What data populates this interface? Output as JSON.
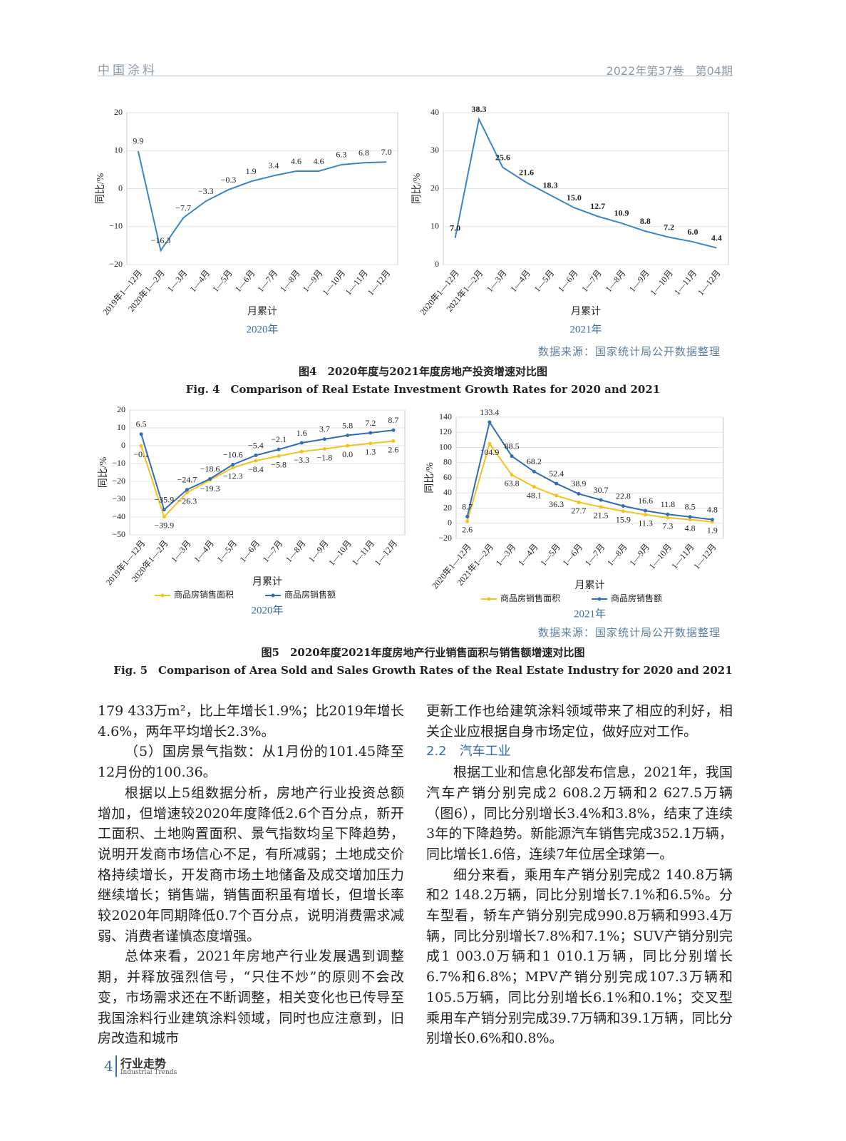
{
  "header": {
    "journal": "中国涂料",
    "issue": "2022年第37卷　第04期"
  },
  "chart_data": [
    {
      "type": "line",
      "xlabel": "月累计",
      "ylabel": "同比/%",
      "subtitle": "2020年",
      "grid": true,
      "markers": false,
      "categories": [
        "2019年1—12月",
        "2020年1—2月",
        "1—3月",
        "1—4月",
        "1—5月",
        "1—6月",
        "1—7月",
        "1—8月",
        "1—9月",
        "1—10月",
        "1—11月",
        "1—12月"
      ],
      "series": [
        {
          "color": "#3a85c6",
          "values": [
            9.9,
            -16.3,
            -7.7,
            -3.3,
            -0.3,
            1.9,
            3.4,
            4.6,
            4.6,
            6.3,
            6.8,
            7.0
          ],
          "value_labels": [
            "9.9",
            "−16.3",
            "−7.7",
            "−3.3",
            "−0.3",
            "1.9",
            "3.4",
            "4.6",
            "4.6",
            "6.3",
            "6.8",
            "7.0"
          ]
        }
      ],
      "ylim": [
        -20,
        20
      ],
      "yticks": [
        {
          "value": -20,
          "label": "−20"
        },
        {
          "value": -10,
          "label": "−10"
        },
        0,
        10,
        20
      ]
    },
    {
      "type": "line",
      "xlabel": "月累计",
      "ylabel": "同比/%",
      "subtitle": "2021年",
      "grid": true,
      "markers": false,
      "categories": [
        "2020年1—12月",
        "2021年1—2月",
        "1—3月",
        "1—4月",
        "1—5月",
        "1—6月",
        "1—7月",
        "1—8月",
        "1—9月",
        "1—10月",
        "1—11月",
        "1—12月"
      ],
      "series": [
        {
          "color": "#3a85c6",
          "values": [
            7.0,
            38.3,
            25.6,
            21.6,
            18.3,
            15.0,
            12.7,
            10.9,
            8.8,
            7.2,
            6.0,
            4.4
          ],
          "value_labels": [
            "7.0",
            "38.3",
            "25.6",
            "21.6",
            "18.3",
            "15.0",
            "12.7",
            "10.9",
            "8.8",
            "7.2",
            "6.0",
            "4.4"
          ]
        }
      ],
      "ylim": [
        0,
        40
      ],
      "yticks": [
        0,
        10,
        20,
        30,
        40
      ]
    },
    {
      "type": "line",
      "xlabel": "月累计",
      "ylabel": "同比/%",
      "subtitle": "2020年",
      "grid": true,
      "markers": true,
      "categories": [
        "2019年1—12月",
        "2020年1—2月",
        "1—3月",
        "1—4月",
        "1—5月",
        "1—6月",
        "1—7月",
        "1—8月",
        "1—9月",
        "1—10月",
        "1—11月",
        "1—12月"
      ],
      "series": [
        {
          "name": "商品房销售面积",
          "color": "#f5c21b",
          "values": [
            -0.1,
            -39.9,
            -26.3,
            -19.3,
            -12.3,
            -8.4,
            -5.8,
            -3.3,
            -1.8,
            0.0,
            1.3,
            2.6
          ],
          "value_labels": [
            "−0.1",
            "−39.9",
            "−26.3",
            "−19.3",
            "−12.3",
            "−8.4",
            "−5.8",
            "−3.3",
            "−1.8",
            "0.0",
            "1.3",
            "2.6"
          ]
        },
        {
          "name": "商品房销售额",
          "color": "#2f6db5",
          "values": [
            6.5,
            -35.9,
            -24.7,
            -18.6,
            -10.6,
            -5.4,
            -2.1,
            1.6,
            3.7,
            5.8,
            7.2,
            8.7
          ],
          "value_labels": [
            "6.5",
            "−35.9",
            "−24.7",
            "−18.6",
            "−10.6",
            "−5.4",
            "−2.1",
            "1.6",
            "3.7",
            "5.8",
            "7.2",
            "8.7"
          ]
        }
      ],
      "ylim": [
        -50,
        20
      ],
      "yticks": [
        {
          "value": -50,
          "label": "−50"
        },
        {
          "value": -40,
          "label": "−40"
        },
        {
          "value": -30,
          "label": "−30"
        },
        {
          "value": -20,
          "label": "−20"
        },
        {
          "value": -10,
          "label": "−10"
        },
        0,
        10,
        20
      ]
    },
    {
      "type": "line",
      "xlabel": "月累计",
      "ylabel": "同比/%",
      "subtitle": "2021年",
      "grid": true,
      "markers": true,
      "categories": [
        "2020年1—12月",
        "2021年1—2月",
        "1—3月",
        "1—4月",
        "1—5月",
        "1—6月",
        "1—7月",
        "1—8月",
        "1—9月",
        "1—10月",
        "1—11月",
        "1—12月"
      ],
      "series": [
        {
          "name": "商品房销售面积",
          "color": "#f5c21b",
          "values": [
            2.6,
            104.9,
            63.8,
            48.1,
            36.3,
            27.7,
            21.5,
            15.9,
            11.3,
            7.3,
            4.8,
            1.9
          ]
        },
        {
          "name": "商品房销售额",
          "color": "#2f6db5",
          "values": [
            8.7,
            133.4,
            88.5,
            68.2,
            52.4,
            38.9,
            30.7,
            22.8,
            16.6,
            11.8,
            8.5,
            4.8
          ]
        }
      ],
      "ylim": [
        -20,
        140
      ],
      "yticks": [
        {
          "value": -20,
          "label": "−20"
        },
        0,
        20,
        40,
        60,
        80,
        100,
        120,
        140
      ]
    }
  ],
  "figures": [
    {
      "source": "数据来源：国家统计局公开数据整理",
      "caption_cn": "图4　2020年度与2021年度房地产投资增速对比图",
      "caption_en": "Fig. 4　Comparison of Real Estate Investment Growth Rates for 2020 and 2021"
    },
    {
      "source": "数据来源：国家统计局公开数据整理",
      "caption_cn": "图5　2020年度2021年度房地产行业销售面积与销售额增速对比图",
      "caption_en": "Fig. 5　Comparison of Area Sold and Sales Growth Rates of the Real Estate Industry for 2020 and 2021"
    }
  ],
  "body": {
    "left": [
      "179 433万m²，比上年增长1.9%；比2019年增长4.6%，两年平均增长2.3%。",
      "（5）国房景气指数：从1月份的101.45降至12月份的100.36。",
      "根据以上5组数据分析，房地产行业投资总额增加，但增速较2020年度降低2.6个百分点，新开工面积、土地购置面积、景气指数均呈下降趋势，说明开发商市场信心不足，有所减弱；土地成交价格持续增长，开发商市场土地储备及成交增加压力继续增长；销售端，销售面积虽有增长，但增长率较2020年同期降低0.7个百分点，说明消费需求减弱、消费者谨慎态度增强。",
      "总体来看，2021年房地产行业发展遇到调整期，并释放强烈信号，“只住不炒”的原则不会改变，市场需求还在不断调整，相关变化也已传导至我国涂料行业建筑涂料领域，同时也应注意到，旧房改造和城市"
    ],
    "right_first": "更新工作也给建筑涂料领域带来了相应的利好，相关企业应根据自身市场定位，做好应对工作。",
    "heading": "2.2　汽车工业",
    "right": [
      "根据工业和信息化部发布信息，2021年，我国汽车产销分别完成2 608.2万辆和2 627.5万辆（图6），同比分别增长3.4%和3.8%，结束了连续3年的下降趋势。新能源汽车销售完成352.1万辆，同比增长1.6倍，连续7年位居全球第一。",
      "细分来看，乘用车产销分别完成2 140.8万辆和2 148.2万辆，同比分别增长7.1%和6.5%。分车型看，轿车产销分别完成990.8万辆和993.4万辆，同比分别增长7.8%和7.1%；SUV产销分别完成1 003.0万辆和1 010.1万辆，同比分别增长6.7%和6.8%；MPV产销分别完成107.3万辆和105.5万辆，同比分别增长6.1%和0.1%；交叉型乘用车产销分别完成39.7万辆和39.1万辆，同比分别增长0.6%和0.8%。"
    ]
  },
  "footer": {
    "page": "4",
    "section": "行业走势",
    "section_en": "Industrial Trends"
  }
}
